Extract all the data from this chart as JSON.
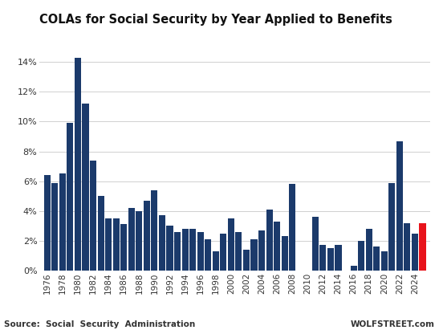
{
  "title": "COLAs for Social Security by Year Applied to Benefits",
  "source_left": "Source:  Social  Security  Administration",
  "source_right": "WOLFSTREET.com",
  "years": [
    1976,
    1977,
    1978,
    1979,
    1980,
    1981,
    1982,
    1983,
    1984,
    1985,
    1986,
    1987,
    1988,
    1989,
    1990,
    1991,
    1992,
    1993,
    1994,
    1995,
    1996,
    1997,
    1998,
    1999,
    2000,
    2001,
    2002,
    2003,
    2004,
    2005,
    2006,
    2007,
    2008,
    2009,
    2010,
    2011,
    2012,
    2013,
    2014,
    2015,
    2016,
    2017,
    2018,
    2019,
    2020,
    2021,
    2022,
    2023,
    2024,
    2025
  ],
  "values": [
    6.4,
    5.9,
    6.5,
    9.9,
    14.3,
    11.2,
    7.4,
    5.0,
    3.5,
    3.5,
    3.1,
    4.2,
    4.0,
    4.7,
    5.4,
    3.7,
    3.0,
    2.6,
    2.8,
    2.8,
    2.6,
    2.1,
    1.3,
    2.5,
    3.5,
    2.6,
    1.4,
    2.1,
    2.7,
    4.1,
    3.3,
    2.3,
    5.8,
    0.0,
    0.0,
    3.6,
    1.7,
    1.5,
    1.7,
    0.0,
    0.3,
    2.0,
    2.8,
    1.6,
    1.3,
    5.9,
    8.7,
    3.2,
    2.5,
    3.2
  ],
  "colors": [
    "#1b3a6b",
    "#1b3a6b",
    "#1b3a6b",
    "#1b3a6b",
    "#1b3a6b",
    "#1b3a6b",
    "#1b3a6b",
    "#1b3a6b",
    "#1b3a6b",
    "#1b3a6b",
    "#1b3a6b",
    "#1b3a6b",
    "#1b3a6b",
    "#1b3a6b",
    "#1b3a6b",
    "#1b3a6b",
    "#1b3a6b",
    "#1b3a6b",
    "#1b3a6b",
    "#1b3a6b",
    "#1b3a6b",
    "#1b3a6b",
    "#1b3a6b",
    "#1b3a6b",
    "#1b3a6b",
    "#1b3a6b",
    "#1b3a6b",
    "#1b3a6b",
    "#1b3a6b",
    "#1b3a6b",
    "#1b3a6b",
    "#1b3a6b",
    "#1b3a6b",
    "#1b3a6b",
    "#1b3a6b",
    "#1b3a6b",
    "#1b3a6b",
    "#1b3a6b",
    "#1b3a6b",
    "#1b3a6b",
    "#1b3a6b",
    "#1b3a6b",
    "#1b3a6b",
    "#1b3a6b",
    "#1b3a6b",
    "#1b3a6b",
    "#1b3a6b",
    "#1b3a6b",
    "#1b3a6b",
    "#e8131b"
  ],
  "ylim": [
    0,
    15.5
  ],
  "yticks": [
    0,
    2,
    4,
    6,
    8,
    10,
    12,
    14
  ],
  "ytick_labels": [
    "0%",
    "2%",
    "4%",
    "6%",
    "8%",
    "10%",
    "12%",
    "14%"
  ],
  "xtick_years": [
    1976,
    1978,
    1980,
    1982,
    1984,
    1986,
    1988,
    1990,
    1992,
    1994,
    1996,
    1998,
    2000,
    2002,
    2004,
    2006,
    2008,
    2010,
    2012,
    2014,
    2016,
    2018,
    2020,
    2022,
    2024
  ],
  "background_color": "#ffffff",
  "grid_color": "#d0d0d0",
  "bar_width": 0.85
}
